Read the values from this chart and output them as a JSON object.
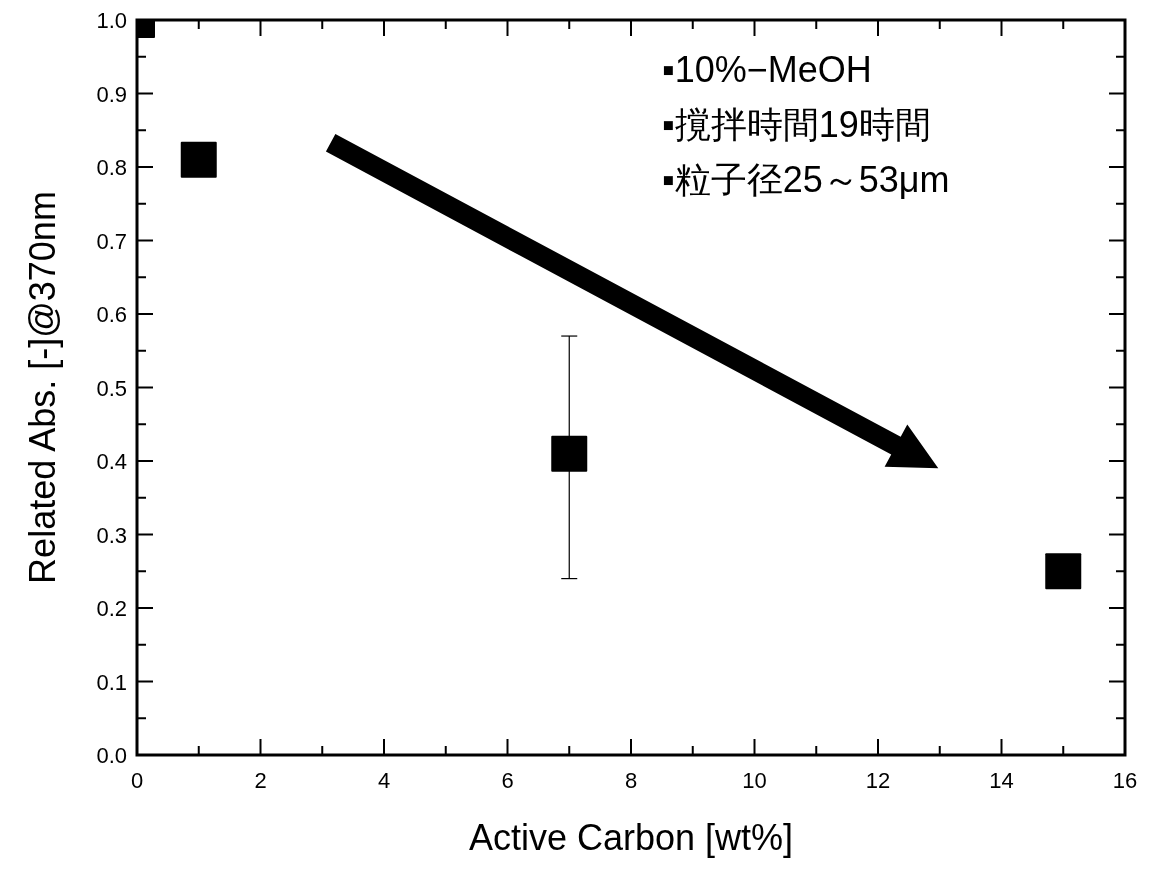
{
  "chart_data": {
    "type": "scatter",
    "xlabel": "Active Carbon [wt%]",
    "ylabel": "Related Abs. [-]@370nm",
    "x": [
      0,
      1,
      7,
      15
    ],
    "series": [
      {
        "color": "#000000",
        "values": [
          1.0,
          0.81,
          0.41,
          0.25
        ],
        "errors": [
          null,
          null,
          [
            0.24,
            0.57
          ],
          null
        ]
      }
    ],
    "marker": "square",
    "xlim": [
      0,
      16
    ],
    "xticks": [
      0,
      2,
      4,
      6,
      8,
      10,
      12,
      14,
      16
    ],
    "ylim": [
      0,
      1
    ],
    "yticks": [
      {
        "value": 0,
        "label": "0.0"
      },
      {
        "value": 0.1,
        "label": "0.1"
      },
      {
        "value": 0.2,
        "label": "0.2"
      },
      {
        "value": 0.3,
        "label": "0.3"
      },
      {
        "value": 0.4,
        "label": "0.4"
      },
      {
        "value": 0.5,
        "label": "0.5"
      },
      {
        "value": 0.6,
        "label": "0.6"
      },
      {
        "value": 0.7,
        "label": "0.7"
      },
      {
        "value": 0.8,
        "label": "0.8"
      },
      {
        "value": 0.9,
        "label": "0.9"
      },
      {
        "value": 1,
        "label": "1.0"
      }
    ],
    "grid": false,
    "annotations": [
      "▪10%−MeOH",
      "▪撹拌時間19時間",
      "▪粒子径25～53μm"
    ]
  }
}
